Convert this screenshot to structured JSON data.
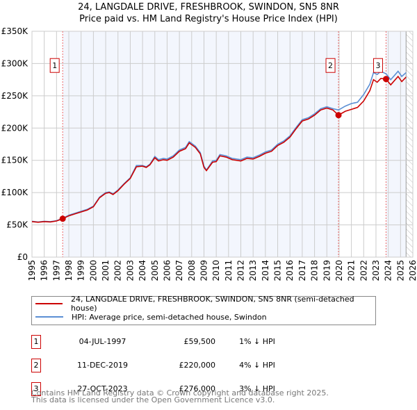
{
  "chart_data": {
    "type": "line",
    "title": "24, LANGDALE DRIVE, FRESHBROOK, SWINDON, SN5 8NR",
    "subtitle": "Price paid vs. HM Land Registry's House Price Index (HPI)",
    "xlim": [
      1995,
      2026
    ],
    "ylim": [
      0,
      350000
    ],
    "x_ticks": [
      "1995",
      "1996",
      "1997",
      "1998",
      "1999",
      "2000",
      "2001",
      "2002",
      "2003",
      "2004",
      "2005",
      "2006",
      "2007",
      "2008",
      "2009",
      "2010",
      "2011",
      "2012",
      "2013",
      "2014",
      "2015",
      "2016",
      "2017",
      "2018",
      "2019",
      "2020",
      "2021",
      "2022",
      "2023",
      "2024",
      "2025",
      "2026"
    ],
    "y_ticks": [
      {
        "v": 0,
        "label": "£0"
      },
      {
        "v": 50000,
        "label": "£50K"
      },
      {
        "v": 100000,
        "label": "£100K"
      },
      {
        "v": 150000,
        "label": "£150K"
      },
      {
        "v": 200000,
        "label": "£200K"
      },
      {
        "v": 250000,
        "label": "£250K"
      },
      {
        "v": 300000,
        "label": "£300K"
      },
      {
        "v": 350000,
        "label": "£350K"
      }
    ],
    "grid": true,
    "shaded_ranges": [
      [
        1997.5,
        2019.95
      ],
      [
        2023.82,
        2025.45
      ]
    ],
    "hatch_from": 2025.45,
    "series": [
      {
        "name": "24, LANGDALE DRIVE, FRESHBROOK, SWINDON, SN5 8NR (semi-detached house)",
        "color": "#cc0000",
        "x": [
          1995,
          1995.5,
          1996,
          1996.5,
          1997,
          1997.5,
          1998,
          1998.5,
          1999,
          1999.5,
          2000,
          2000.5,
          2001,
          2001.3,
          2001.6,
          2002,
          2002.5,
          2003,
          2003.5,
          2004,
          2004.3,
          2004.6,
          2005,
          2005.3,
          2005.7,
          2006,
          2006.5,
          2007,
          2007.5,
          2007.8,
          2008.3,
          2008.7,
          2009,
          2009.2,
          2009.7,
          2010,
          2010.3,
          2010.8,
          2011.3,
          2012,
          2012.5,
          2013,
          2013.5,
          2014,
          2014.5,
          2015,
          2015.5,
          2016,
          2016.5,
          2017,
          2017.5,
          2018,
          2018.5,
          2019,
          2019.5,
          2019.95,
          2020.5,
          2021,
          2021.5,
          2022,
          2022.5,
          2022.8,
          2023.1,
          2023.4,
          2023.82,
          2024.2,
          2024.8,
          2025.1,
          2025.45
        ],
        "values": [
          55000,
          54000,
          55000,
          54500,
          56000,
          59500,
          64000,
          67000,
          70000,
          73000,
          78000,
          92000,
          99000,
          100000,
          97000,
          103000,
          113000,
          122000,
          140000,
          141000,
          139000,
          143000,
          154000,
          149000,
          151000,
          150000,
          155000,
          164000,
          168000,
          177000,
          170000,
          160000,
          139000,
          134000,
          147000,
          148000,
          157000,
          155000,
          151000,
          149000,
          153000,
          152000,
          156000,
          161000,
          164000,
          173000,
          178000,
          186000,
          199000,
          211000,
          214000,
          220000,
          228000,
          231000,
          228000,
          220000,
          226000,
          229000,
          232000,
          242000,
          258000,
          275000,
          271000,
          277000,
          276000,
          267000,
          280000,
          272000,
          279000
        ]
      },
      {
        "name": "HPI: Average price, semi-detached house, Swindon",
        "color": "#5b8fd4",
        "x": [
          1995,
          1995.5,
          1996,
          1996.5,
          1997,
          1997.5,
          1998,
          1998.5,
          1999,
          1999.5,
          2000,
          2000.5,
          2001,
          2001.3,
          2001.6,
          2002,
          2002.5,
          2003,
          2003.5,
          2004,
          2004.3,
          2004.6,
          2005,
          2005.3,
          2005.7,
          2006,
          2006.5,
          2007,
          2007.5,
          2007.8,
          2008.3,
          2008.7,
          2009,
          2009.2,
          2009.7,
          2010,
          2010.3,
          2010.8,
          2011.3,
          2012,
          2012.5,
          2013,
          2013.5,
          2014,
          2014.5,
          2015,
          2015.5,
          2016,
          2016.5,
          2017,
          2017.5,
          2018,
          2018.5,
          2019,
          2019.5,
          2019.95,
          2020.5,
          2021,
          2021.5,
          2022,
          2022.5,
          2022.8,
          2023.1,
          2023.4,
          2023.82,
          2024.2,
          2024.8,
          2025.1,
          2025.45
        ],
        "values": [
          55500,
          54500,
          55500,
          55000,
          56500,
          60000,
          65000,
          68000,
          71000,
          74000,
          79000,
          93000,
          100000,
          101000,
          98000,
          104000,
          114000,
          123000,
          142000,
          142000,
          140000,
          144000,
          156000,
          151000,
          153000,
          152000,
          157000,
          166000,
          170000,
          179000,
          172000,
          162000,
          141000,
          135000,
          149000,
          150000,
          159000,
          157000,
          153000,
          151000,
          155000,
          154000,
          158000,
          163000,
          166000,
          175000,
          180000,
          188000,
          201000,
          213000,
          216000,
          222000,
          230000,
          233000,
          230000,
          228000,
          234000,
          238000,
          240000,
          252000,
          268000,
          286000,
          283000,
          288000,
          284000,
          275000,
          288000,
          280000,
          286000
        ]
      }
    ],
    "sales": [
      {
        "n": "1",
        "x": 1997.5,
        "value": 59500
      },
      {
        "n": "2",
        "x": 2019.95,
        "value": 220000
      },
      {
        "n": "3",
        "x": 2023.82,
        "value": 276000
      }
    ],
    "marker_label_value": 297000
  },
  "legend": {
    "property": "24, LANGDALE DRIVE, FRESHBROOK, SWINDON, SN5 8NR (semi-detached house)",
    "hpi": "HPI: Average price, semi-detached house, Swindon"
  },
  "sales_table": [
    {
      "n": "1",
      "date": "04-JUL-1997",
      "price": "£59,500",
      "pct": "1% ↓ HPI"
    },
    {
      "n": "2",
      "date": "11-DEC-2019",
      "price": "£220,000",
      "pct": "4% ↓ HPI"
    },
    {
      "n": "3",
      "date": "27-OCT-2023",
      "price": "£276,000",
      "pct": "3% ↓ HPI"
    }
  ],
  "footer": {
    "line1": "Contains HM Land Registry data © Crown copyright and database right 2025.",
    "line2": "This data is licensed under the Open Government Licence v3.0."
  }
}
